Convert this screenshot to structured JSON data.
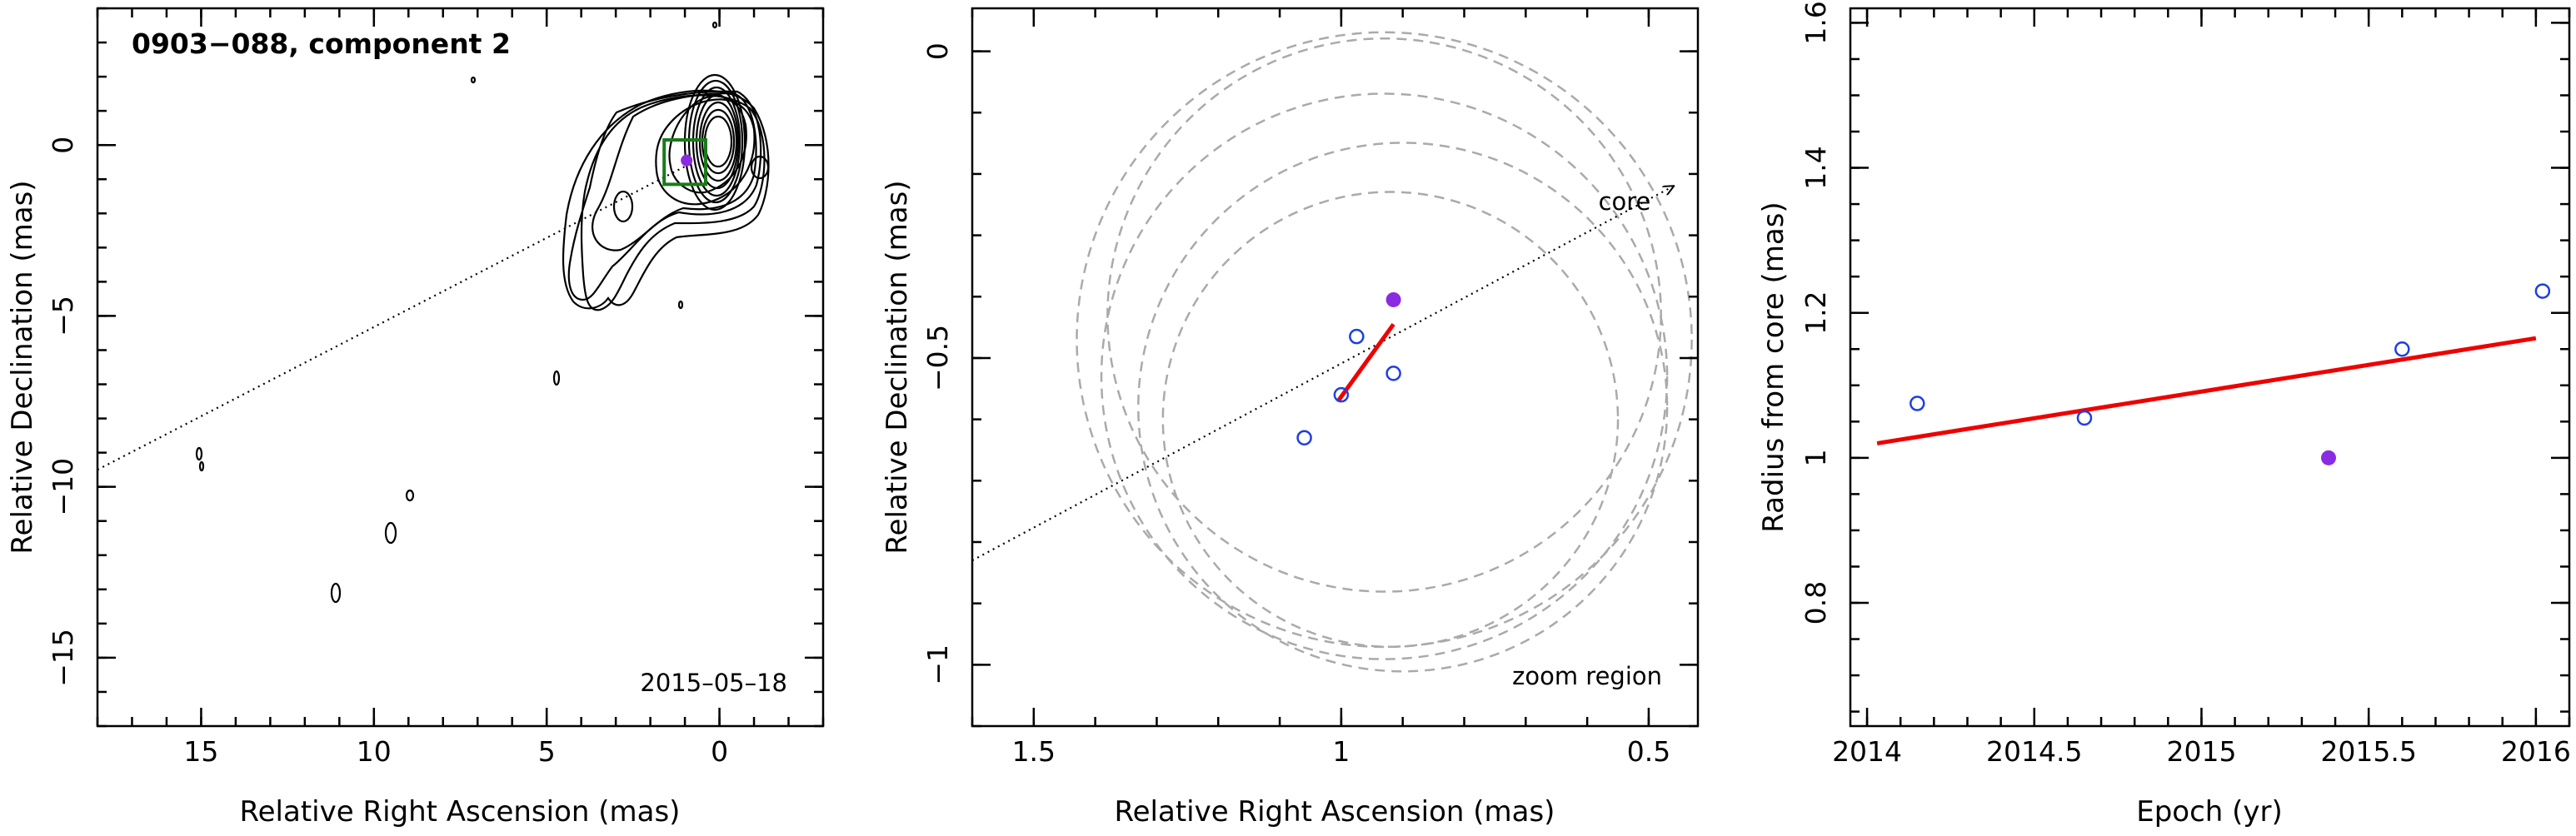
{
  "chart_data": [
    {
      "type": "contour-map",
      "title": "0903−088, component 2",
      "date": "2015–05–18",
      "xlabel": "Relative Right Ascension (mas)",
      "ylabel": "Relative Declination (mas)",
      "xlim": [
        18,
        -3
      ],
      "ylim": [
        -17,
        4
      ],
      "xticks": [
        {
          "v": 15,
          "label": "15"
        },
        {
          "v": 10,
          "label": "10"
        },
        {
          "v": 5,
          "label": "5"
        },
        {
          "v": 0,
          "label": "0"
        }
      ],
      "yticks": [
        {
          "v": 0,
          "label": "0"
        },
        {
          "v": -5,
          "label": "−5"
        },
        {
          "v": -10,
          "label": "−10"
        },
        {
          "v": -15,
          "label": "−15"
        }
      ],
      "core_direction_line": [
        [
          18,
          -9.5
        ],
        [
          0.85,
          -0.55
        ]
      ],
      "zoom_box": {
        "x": [
          1.6,
          0.4
        ],
        "y": [
          -1.15,
          0.15
        ]
      },
      "component_position": {
        "x": 0.95,
        "y": -0.45
      },
      "colors": {
        "box": "#1a7a1a",
        "component": "#8a2be2"
      }
    },
    {
      "type": "scatter",
      "xlabel": "Relative Right Ascension (mas)",
      "ylabel": "Relative Declination (mas)",
      "xlim": [
        1.6,
        0.42
      ],
      "ylim": [
        -1.1,
        0.07
      ],
      "xticks": [
        {
          "v": 1.5,
          "label": "1.5"
        },
        {
          "v": 1,
          "label": "1"
        },
        {
          "v": 0.5,
          "label": "0.5"
        }
      ],
      "yticks": [
        {
          "v": 0,
          "label": "0"
        },
        {
          "v": -0.5,
          "label": "−0.5"
        },
        {
          "v": -1,
          "label": "−1"
        }
      ],
      "open_points": [
        {
          "x": 1.06,
          "y": -0.63
        },
        {
          "x": 1.0,
          "y": -0.56
        },
        {
          "x": 0.975,
          "y": -0.465
        },
        {
          "x": 0.915,
          "y": -0.525
        }
      ],
      "filled_points": [
        {
          "x": 0.915,
          "y": -0.405
        }
      ],
      "fit_line": {
        "x": [
          1.005,
          0.915
        ],
        "y": [
          -0.57,
          -0.445
        ]
      },
      "beam_circles": [
        {
          "cx": 0.92,
          "cy": -0.6,
          "r": 0.37
        },
        {
          "cx": 0.9,
          "cy": -0.58,
          "r": 0.43
        },
        {
          "cx": 0.93,
          "cy": -0.53,
          "r": 0.46
        },
        {
          "cx": 0.93,
          "cy": -0.47,
          "r": 0.5
        },
        {
          "cx": 0.93,
          "cy": -0.43,
          "r": 0.45
        }
      ],
      "core_direction_line": [
        [
          1.6,
          -0.83
        ],
        [
          0.46,
          -0.22
        ]
      ],
      "annotations": {
        "core": "core",
        "zoom": "zoom region"
      },
      "colors": {
        "open": "#1f3fe0",
        "filled": "#8a2be2",
        "fit": "#ee0000",
        "circles": "#aaaaaa"
      }
    },
    {
      "type": "scatter",
      "xlabel": "Epoch (yr)",
      "ylabel": "Radius from core (mas)",
      "xlim": [
        2013.95,
        2016.1
      ],
      "ylim": [
        0.63,
        1.62
      ],
      "xticks": [
        {
          "v": 2014,
          "label": "2014"
        },
        {
          "v": 2014.5,
          "label": "2014.5"
        },
        {
          "v": 2015,
          "label": "2015"
        },
        {
          "v": 2015.5,
          "label": "2015.5"
        },
        {
          "v": 2016,
          "label": "2016"
        }
      ],
      "yticks": [
        {
          "v": 0.8,
          "label": "0.8"
        },
        {
          "v": 1,
          "label": "1"
        },
        {
          "v": 1.2,
          "label": "1.2"
        },
        {
          "v": 1.4,
          "label": "1.4"
        },
        {
          "v": 1.6,
          "label": "1.6"
        }
      ],
      "open_points": [
        {
          "x": 2014.15,
          "y": 1.075
        },
        {
          "x": 2014.65,
          "y": 1.055
        },
        {
          "x": 2015.6,
          "y": 1.15
        },
        {
          "x": 2016.02,
          "y": 1.23
        }
      ],
      "filled_points": [
        {
          "x": 2015.38,
          "y": 1.0
        }
      ],
      "fit_line": {
        "x": [
          2014.03,
          2016.0
        ],
        "y": [
          1.02,
          1.165
        ]
      },
      "colors": {
        "open": "#1f3fe0",
        "filled": "#8a2be2",
        "fit": "#ee0000"
      }
    }
  ]
}
